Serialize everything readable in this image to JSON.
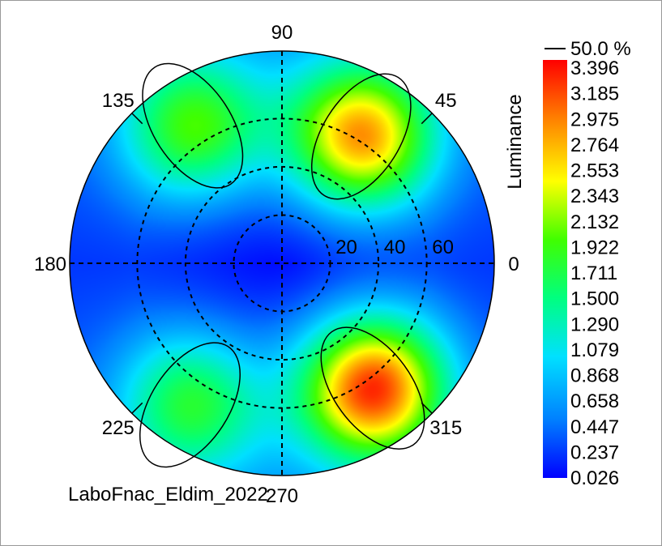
{
  "chart_data": {
    "type": "heatmap",
    "projection": "polar",
    "caption": "LaboFnac_Eldim_2022",
    "azimuth_labels": [
      {
        "angle": 0,
        "text": "0"
      },
      {
        "angle": 45,
        "text": "45"
      },
      {
        "angle": 90,
        "text": "90"
      },
      {
        "angle": 135,
        "text": "135"
      },
      {
        "angle": 180,
        "text": "180"
      },
      {
        "angle": 225,
        "text": "225"
      },
      {
        "angle": 270,
        "text": "270"
      },
      {
        "angle": 315,
        "text": "315"
      }
    ],
    "radial_rings": [
      20,
      40,
      60
    ],
    "radial_labels": [
      "20",
      "40",
      "60"
    ],
    "radial_max": 88,
    "colorbar": {
      "label": "Luminance",
      "contour_label": "50.0 %",
      "ticks": [
        "3.396",
        "3.185",
        "2.975",
        "2.764",
        "2.553",
        "2.343",
        "2.132",
        "1.922",
        "1.711",
        "1.500",
        "1.290",
        "1.079",
        "0.868",
        "0.658",
        "0.447",
        "0.237",
        "0.026"
      ],
      "min": 0.026,
      "max": 3.396,
      "colors": [
        "#0000ff",
        "#0080ff",
        "#00e0ff",
        "#00ff80",
        "#40ff00",
        "#ffff00",
        "#ff8000",
        "#ff0000"
      ]
    },
    "hotspots": [
      {
        "azimuth": 58,
        "polar": 62,
        "value": 2.9
      },
      {
        "azimuth": 123,
        "polar": 68,
        "value": 2.0
      },
      {
        "azimuth": 237,
        "polar": 70,
        "value": 1.8
      },
      {
        "azimuth": 306,
        "polar": 64,
        "value": 3.3
      }
    ],
    "background_value": 0.5,
    "grid": true
  }
}
